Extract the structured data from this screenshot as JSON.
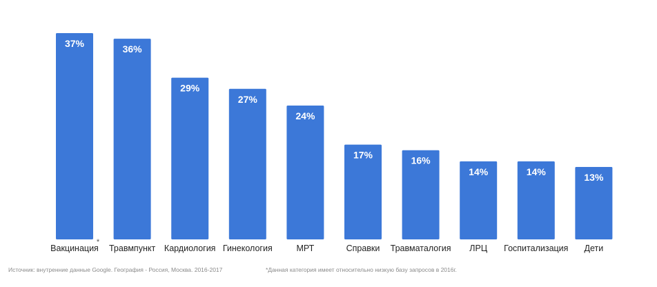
{
  "chart_data": {
    "type": "bar",
    "categories": [
      "Вакцинация",
      "Травмпункт",
      "Кардиология",
      "Гинекология",
      "МРТ",
      "Справки",
      "Травматалогия",
      "ЛРЦ",
      "Госпитализация",
      "Дети"
    ],
    "values": [
      37,
      36,
      29,
      27,
      24,
      17,
      16,
      14,
      14,
      13
    ],
    "value_labels": [
      "37%",
      "36%",
      "29%",
      "27%",
      "24%",
      "17%",
      "16%",
      "14%",
      "14%",
      "13%"
    ],
    "category_markers": [
      "*",
      "",
      "",
      "",
      "",
      "",
      "",
      "",
      "",
      ""
    ],
    "unit": "%",
    "ylim": [
      0,
      37
    ],
    "grid": false,
    "legend": "none",
    "bar_color": "#3c78d8"
  },
  "footnotes": {
    "source": "Источник: внутренние данные Google. География - Россия, Москва. 2016-2017",
    "category_note": "*Данная категория имеет относительно низкую базу запросов в 2016г."
  }
}
